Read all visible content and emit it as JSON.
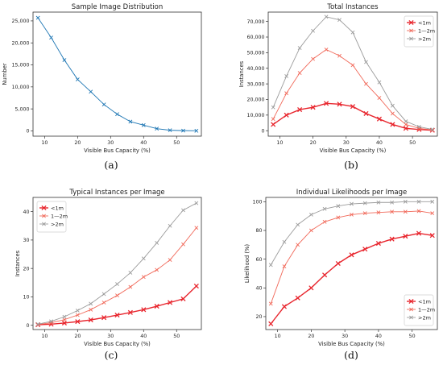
{
  "colors": {
    "blue": "#1f77b4",
    "lt1": "#e8262e",
    "m12": "#f16a5b",
    "gt2": "#9c9c9c"
  },
  "chart_data": [
    {
      "id": "a",
      "type": "line",
      "title": "Sample Image Distribution",
      "xlabel": "Visible Bus Capacity (%)",
      "ylabel": "Number",
      "caption": "(a)",
      "xlim": [
        6.5,
        57.5
      ],
      "ylim": [
        -1200,
        27000
      ],
      "xticks": [
        10,
        20,
        30,
        40,
        50
      ],
      "yticks": [
        0,
        5000,
        10000,
        15000,
        20000,
        25000
      ],
      "ytick_labels": [
        "0",
        "5,000",
        "10,000",
        "15,000",
        "20,000",
        "25,000"
      ],
      "x": [
        8,
        12,
        16,
        20,
        24,
        28,
        32,
        36,
        40,
        44,
        48,
        52,
        56
      ],
      "series": [
        {
          "values": [
            25700,
            21200,
            16100,
            11700,
            8900,
            6000,
            3800,
            2100,
            1300,
            500,
            150,
            60,
            20
          ],
          "color": "#1f77b4"
        }
      ]
    },
    {
      "id": "b",
      "type": "line",
      "title": "Total Instances",
      "xlabel": "Visible Bus Capacity (%)",
      "ylabel": "Instances",
      "caption": "(b)",
      "xlim": [
        6.5,
        57.5
      ],
      "ylim": [
        -3500,
        76000
      ],
      "xticks": [
        10,
        20,
        30,
        40,
        50
      ],
      "yticks": [
        0,
        10000,
        20000,
        30000,
        40000,
        50000,
        60000,
        70000
      ],
      "ytick_labels": [
        "0",
        "10,000",
        "20,000",
        "30,000",
        "40,000",
        "50,000",
        "60,000",
        "70,000"
      ],
      "legend": "top-right",
      "x": [
        8,
        12,
        16,
        20,
        24,
        28,
        32,
        36,
        40,
        44,
        48,
        52,
        56
      ],
      "series": [
        {
          "name": "<1m",
          "values": [
            4000,
            10000,
            13500,
            15000,
            17500,
            17000,
            15500,
            11000,
            7500,
            4000,
            1500,
            800,
            300
          ],
          "color": "#e8262e",
          "bold": true
        },
        {
          "name": "1—2m",
          "values": [
            7500,
            24000,
            37000,
            46000,
            52000,
            48000,
            42000,
            30000,
            21000,
            11000,
            4000,
            1500,
            500
          ],
          "color": "#f16a5b"
        },
        {
          "name": ">2m",
          "values": [
            15000,
            35000,
            53000,
            64000,
            73000,
            71000,
            63000,
            44000,
            31000,
            16000,
            6000,
            2500,
            800
          ],
          "color": "#9c9c9c"
        }
      ]
    },
    {
      "id": "c",
      "type": "line",
      "title": "Typical Instances per Image",
      "xlabel": "Visible Bus Capacity (%)",
      "ylabel": "Instances",
      "caption": "(c)",
      "xlim": [
        6.5,
        57.5
      ],
      "ylim": [
        -1.5,
        45
      ],
      "xticks": [
        10,
        20,
        30,
        40,
        50
      ],
      "yticks": [
        0,
        10,
        20,
        30,
        40
      ],
      "ytick_labels": [
        "0",
        "10",
        "20",
        "30",
        "40"
      ],
      "legend": "top-left",
      "x": [
        8,
        12,
        16,
        20,
        24,
        28,
        32,
        36,
        40,
        44,
        48,
        52,
        56
      ],
      "series": [
        {
          "name": "<1m",
          "values": [
            0.2,
            0.4,
            0.8,
            1.3,
            1.9,
            2.7,
            3.6,
            4.5,
            5.5,
            6.7,
            8.0,
            9.3,
            13.8
          ],
          "color": "#e8262e",
          "bold": true
        },
        {
          "name": "1—2m",
          "values": [
            0.3,
            0.9,
            2.0,
            3.6,
            5.5,
            8.0,
            10.5,
            13.5,
            17.0,
            19.5,
            23.0,
            28.5,
            34.3
          ],
          "color": "#f16a5b"
        },
        {
          "name": ">2m",
          "values": [
            0.4,
            1.4,
            3.0,
            5.2,
            7.6,
            11.0,
            14.5,
            18.5,
            23.5,
            29.0,
            35.0,
            40.5,
            43.0
          ],
          "color": "#9c9c9c"
        }
      ]
    },
    {
      "id": "d",
      "type": "line",
      "title": "Individual Likelihoods per Image",
      "xlabel": "Visible Bus Capacity (%)",
      "ylabel": "Likelihood (%)",
      "caption": "(d)",
      "xlim": [
        6.5,
        57.5
      ],
      "ylim": [
        11,
        103
      ],
      "xticks": [
        10,
        20,
        30,
        40,
        50
      ],
      "yticks": [
        20,
        40,
        60,
        80,
        100
      ],
      "ytick_labels": [
        "20",
        "40",
        "60",
        "80",
        "100"
      ],
      "legend": "bottom-right",
      "x": [
        8,
        12,
        16,
        20,
        24,
        28,
        32,
        36,
        40,
        44,
        48,
        52,
        56
      ],
      "series": [
        {
          "name": "<1m",
          "values": [
            15,
            27,
            33,
            40,
            49,
            57,
            63,
            67,
            71,
            74,
            76,
            78,
            76.5
          ],
          "color": "#e8262e",
          "bold": true
        },
        {
          "name": "1—2m",
          "values": [
            29,
            55,
            70,
            80,
            86,
            89,
            91,
            92,
            92.5,
            93,
            93,
            93.5,
            92
          ],
          "color": "#f16a5b"
        },
        {
          "name": ">2m",
          "values": [
            56,
            72,
            84,
            91,
            95,
            97,
            98.5,
            99,
            99.5,
            99.5,
            100,
            100,
            100
          ],
          "color": "#9c9c9c"
        }
      ]
    }
  ]
}
